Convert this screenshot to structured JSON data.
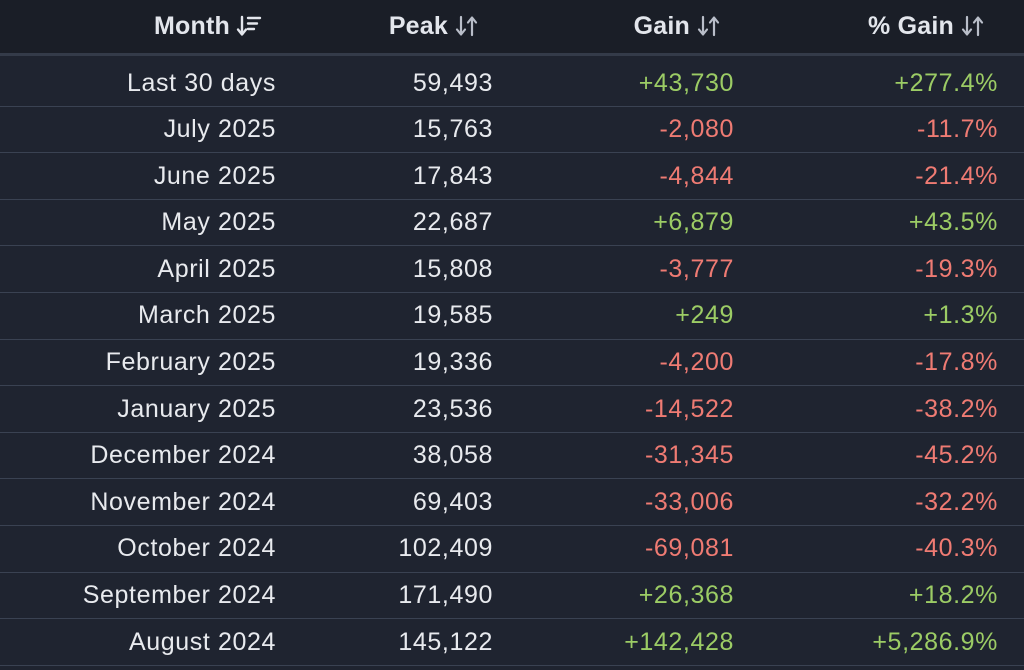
{
  "header": {
    "month": "Month",
    "peak": "Peak",
    "gain": "Gain",
    "pct_gain": "% Gain"
  },
  "icons": {
    "month_sort": "sort-descending-icon",
    "other_sort": "sort-unsorted-icon"
  },
  "colors": {
    "positive": "#9ccc65",
    "negative": "#ef7b73",
    "background": "#1f2430"
  },
  "rows": [
    {
      "month": "Last 30 days",
      "peak": "59,493",
      "gain": "+43,730",
      "pct": "+277.4%",
      "trend": "pos"
    },
    {
      "month": "July 2025",
      "peak": "15,763",
      "gain": "-2,080",
      "pct": "-11.7%",
      "trend": "neg"
    },
    {
      "month": "June 2025",
      "peak": "17,843",
      "gain": "-4,844",
      "pct": "-21.4%",
      "trend": "neg"
    },
    {
      "month": "May 2025",
      "peak": "22,687",
      "gain": "+6,879",
      "pct": "+43.5%",
      "trend": "pos"
    },
    {
      "month": "April 2025",
      "peak": "15,808",
      "gain": "-3,777",
      "pct": "-19.3%",
      "trend": "neg"
    },
    {
      "month": "March 2025",
      "peak": "19,585",
      "gain": "+249",
      "pct": "+1.3%",
      "trend": "pos"
    },
    {
      "month": "February 2025",
      "peak": "19,336",
      "gain": "-4,200",
      "pct": "-17.8%",
      "trend": "neg"
    },
    {
      "month": "January 2025",
      "peak": "23,536",
      "gain": "-14,522",
      "pct": "-38.2%",
      "trend": "neg"
    },
    {
      "month": "December 2024",
      "peak": "38,058",
      "gain": "-31,345",
      "pct": "-45.2%",
      "trend": "neg"
    },
    {
      "month": "November 2024",
      "peak": "69,403",
      "gain": "-33,006",
      "pct": "-32.2%",
      "trend": "neg"
    },
    {
      "month": "October 2024",
      "peak": "102,409",
      "gain": "-69,081",
      "pct": "-40.3%",
      "trend": "neg"
    },
    {
      "month": "September 2024",
      "peak": "171,490",
      "gain": "+26,368",
      "pct": "+18.2%",
      "trend": "pos"
    },
    {
      "month": "August 2024",
      "peak": "145,122",
      "gain": "+142,428",
      "pct": "+5,286.9%",
      "trend": "pos"
    }
  ]
}
